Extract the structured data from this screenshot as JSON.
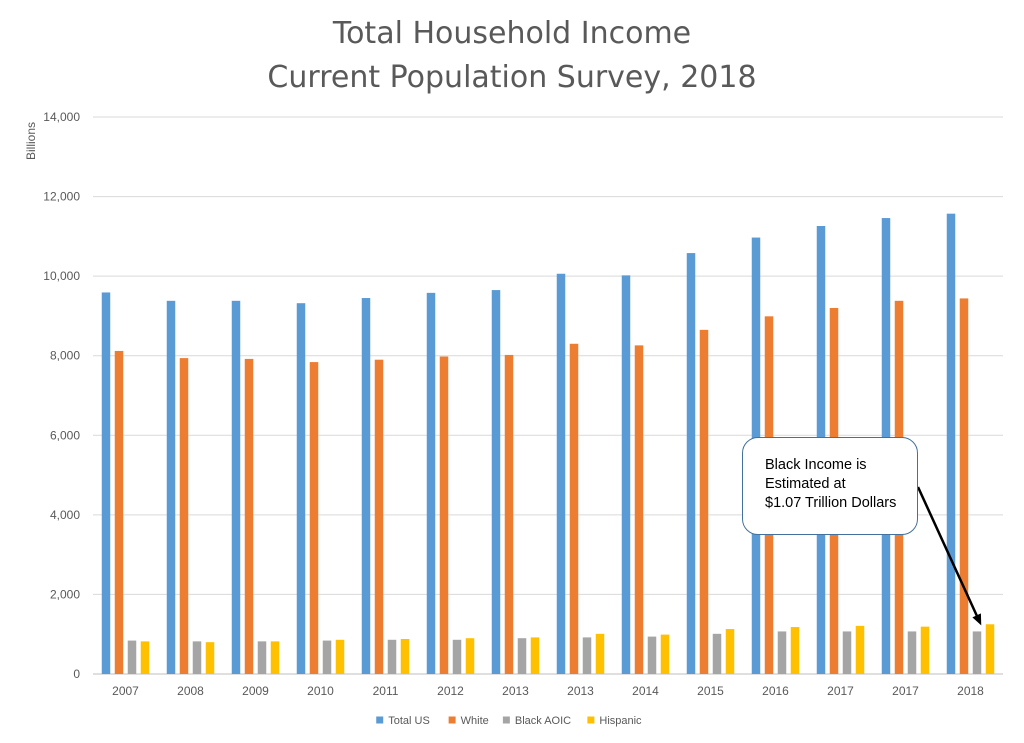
{
  "chart_data": {
    "type": "bar",
    "title_lines": [
      "Total Household Income",
      "Current Population Survey, 2018"
    ],
    "ylabel": "Billions",
    "xlabel": "",
    "ylim": [
      0,
      14000
    ],
    "yticks": [
      0,
      2000,
      4000,
      6000,
      8000,
      10000,
      12000,
      14000
    ],
    "ytick_labels": [
      "0",
      "2,000",
      "4,000",
      "6,000",
      "8,000",
      "10,000",
      "12,000",
      "14,000"
    ],
    "grid": true,
    "legend_position": "bottom",
    "categories": [
      "2007",
      "2008",
      "2009",
      "2010",
      "2011",
      "2012",
      "2013",
      "2013",
      "2014",
      "2015",
      "2016",
      "2017",
      "2017",
      "2018"
    ],
    "series": [
      {
        "name": "Total US",
        "color": "#5b9bd5",
        "values": [
          9590,
          9380,
          9380,
          9320,
          9450,
          9580,
          9650,
          10060,
          10020,
          10580,
          10970,
          11260,
          11460,
          11570
        ]
      },
      {
        "name": "White",
        "color": "#ed7d31",
        "values": [
          8120,
          7940,
          7920,
          7840,
          7900,
          7980,
          8020,
          8300,
          8260,
          8650,
          8990,
          9200,
          9380,
          9440
        ]
      },
      {
        "name": "Black AOIC",
        "color": "#a5a5a5",
        "values": [
          840,
          820,
          820,
          840,
          860,
          860,
          900,
          920,
          940,
          1010,
          1070,
          1070,
          1070,
          1070
        ]
      },
      {
        "name": "Hispanic",
        "color": "#ffc000",
        "values": [
          820,
          800,
          820,
          860,
          880,
          900,
          920,
          1010,
          990,
          1130,
          1180,
          1210,
          1190,
          1250
        ]
      }
    ],
    "annotation": {
      "lines": [
        "Black Income is",
        "Estimated at",
        "$1.07 Trillion Dollars"
      ],
      "points_to": {
        "category_index": 13,
        "series": "Black AOIC"
      }
    }
  }
}
